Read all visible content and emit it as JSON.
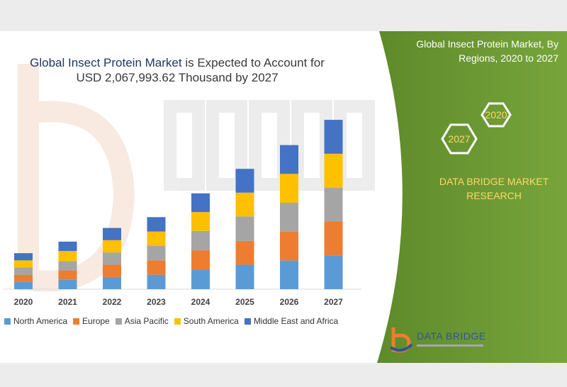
{
  "headline": {
    "lead": "Global Insect Protein Market",
    "rest_line1": " is Expected to Account for",
    "line2": "USD 2,067,993.62 Thousand by 2027"
  },
  "side_panel": {
    "title": "Global Insect Protein Market, By Regions, 2020 to 2027",
    "hex_start": "2020",
    "hex_end": "2027",
    "brand": "DATA BRIDGE MARKET RESEARCH"
  },
  "logo": {
    "name": "DATA BRIDGE"
  },
  "colors": {
    "north_america": "#5b9bd5",
    "europe": "#ed7d31",
    "asia_pacific": "#a5a5a5",
    "south_america": "#ffc000",
    "mea": "#4472c4",
    "green_panel": "#6f9a35",
    "headline": "#1f3864"
  },
  "chart_data": {
    "type": "bar",
    "stacked": true,
    "title": "",
    "xlabel": "",
    "ylabel": "",
    "categories": [
      "2020",
      "2021",
      "2022",
      "2023",
      "2024",
      "2025",
      "2026",
      "2027"
    ],
    "series": [
      {
        "name": "North America",
        "color": "#5b9bd5",
        "values": [
          10,
          13,
          17,
          20,
          27,
          34,
          40,
          47
        ]
      },
      {
        "name": "Europe",
        "color": "#ed7d31",
        "values": [
          10,
          13,
          17,
          20,
          27,
          33,
          40,
          47
        ]
      },
      {
        "name": "Asia Pacific",
        "color": "#a5a5a5",
        "values": [
          10,
          13,
          17,
          20,
          27,
          34,
          40,
          47
        ]
      },
      {
        "name": "South America",
        "color": "#ffc000",
        "values": [
          10,
          14,
          17,
          20,
          26,
          33,
          40,
          47
        ]
      },
      {
        "name": "Middle East and Africa",
        "color": "#4472c4",
        "values": [
          10,
          13,
          17,
          20,
          26,
          33,
          40,
          47
        ]
      }
    ],
    "ylim": [
      0,
      240
    ],
    "legend": "bottom",
    "grid": false
  }
}
